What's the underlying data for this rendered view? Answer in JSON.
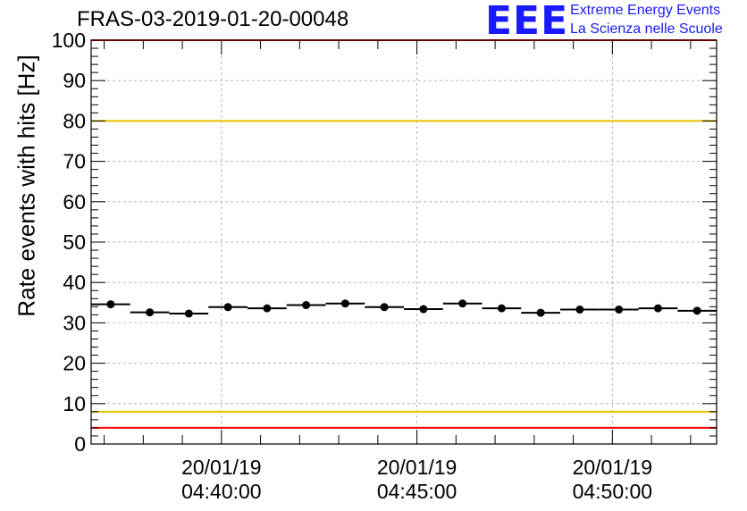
{
  "title": "FRAS-03-2019-01-20-00048",
  "logo": {
    "mark": "EEE",
    "line1": "Extreme Energy Events",
    "line2": "La Scienza nelle Scuole"
  },
  "colors": {
    "threshold_red": "#ff0000",
    "threshold_yellow": "#e6c200",
    "logo_blue": "#1a1aff",
    "grid": "#b4b4b4"
  },
  "chart_data": {
    "type": "scatter",
    "title": "FRAS-03-2019-01-20-00048",
    "ylabel": "Rate events with hits [Hz]",
    "xlabel": "",
    "ylim": [
      0,
      100
    ],
    "yticks": [
      "0",
      "10",
      "20",
      "30",
      "40",
      "50",
      "60",
      "70",
      "80",
      "90",
      "100"
    ],
    "xlim": [
      "2019-01-20 04:36:40",
      "2019-01-20 04:52:40"
    ],
    "xtick_labels": [
      {
        "time": "2019-01-20 04:40:00",
        "date": "20/01/19",
        "clock": "04:40:00"
      },
      {
        "time": "2019-01-20 04:45:00",
        "date": "20/01/19",
        "clock": "04:45:00"
      },
      {
        "time": "2019-01-20 04:50:00",
        "date": "20/01/19",
        "clock": "04:50:00"
      }
    ],
    "grid": true,
    "thresholds": [
      {
        "value": 100,
        "color": "#ff0000"
      },
      {
        "value": 80,
        "color": "#e6c200"
      },
      {
        "value": 8,
        "color": "#e6c200"
      },
      {
        "value": 4,
        "color": "#ff0000"
      }
    ],
    "bin_width_seconds": 60,
    "x": [
      "04:37:10",
      "04:38:10",
      "04:39:10",
      "04:40:10",
      "04:41:10",
      "04:42:10",
      "04:43:10",
      "04:44:10",
      "04:45:10",
      "04:46:10",
      "04:47:10",
      "04:48:10",
      "04:49:10",
      "04:50:10",
      "04:51:10",
      "04:52:10"
    ],
    "y": [
      34.6,
      32.6,
      32.3,
      33.9,
      33.6,
      34.4,
      34.8,
      33.9,
      33.4,
      34.8,
      33.6,
      32.5,
      33.3,
      33.3,
      33.6,
      33.0
    ]
  }
}
